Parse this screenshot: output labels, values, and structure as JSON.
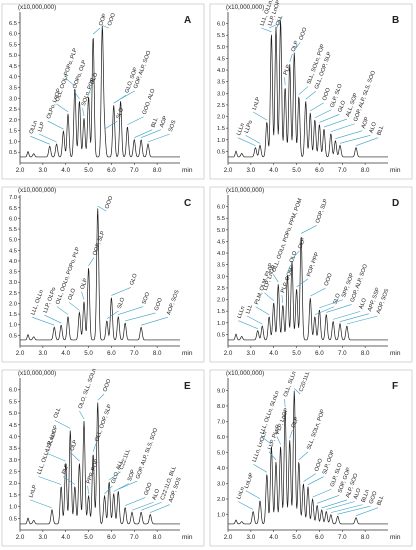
{
  "chart_data": [
    {
      "panel": "A",
      "type": "line",
      "scale_label": "(x10,000,000)",
      "xlabel": "min",
      "xlim": [
        2.0,
        9.0
      ],
      "xticks": [
        "2.0",
        "3.0",
        "4.0",
        "5.0",
        "6.0",
        "7.0",
        "8.0"
      ],
      "ylim": [
        0,
        7
      ],
      "yticks": [
        "0.5",
        "1.0",
        "1.5",
        "2.0",
        "2.5",
        "3.0",
        "3.5",
        "4.0",
        "4.5",
        "5.0",
        "5.5",
        "6.0",
        "6.5"
      ],
      "peaks": [
        {
          "label": "OLLn",
          "rt": 3.3,
          "height": 0.5
        },
        {
          "label": "LLP",
          "rt": 3.6,
          "height": 0.6
        },
        {
          "label": "OLPo, LnOP",
          "rt": 3.9,
          "height": 1.2
        },
        {
          "label": "OLL, OOLn",
          "rt": 4.1,
          "height": 2.0
        },
        {
          "label": "POPo, PLP",
          "rt": 4.4,
          "height": 3.2
        },
        {
          "label": "OOPo, OLP",
          "rt": 4.6,
          "height": 2.6
        },
        {
          "label": "SOLn, POP",
          "rt": 4.8,
          "height": 1.8
        },
        {
          "label": "OLO",
          "rt": 5.0,
          "height": 2.8
        },
        {
          "label": "OOP",
          "rt": 5.2,
          "height": 5.6
        },
        {
          "label": "OOO",
          "rt": 5.6,
          "height": 6.0
        },
        {
          "label": "SLO",
          "rt": 5.7,
          "height": 1.2
        },
        {
          "label": "GLO, SOP",
          "rt": 6.1,
          "height": 2.4
        },
        {
          "label": "GOP, ALP, SOO",
          "rt": 6.4,
          "height": 2.6
        },
        {
          "label": "GOO, ALO",
          "rt": 6.7,
          "height": 1.4
        },
        {
          "label": "BLL",
          "rt": 7.0,
          "height": 0.8
        },
        {
          "label": "AOP",
          "rt": 7.3,
          "height": 0.8
        },
        {
          "label": "SOS",
          "rt": 7.6,
          "height": 0.6
        }
      ]
    },
    {
      "panel": "B",
      "type": "line",
      "scale_label": "(x10,000,000)",
      "xlabel": "min",
      "xlim": [
        2.0,
        9.0
      ],
      "xticks": [
        "2.0",
        "3.0",
        "4.0",
        "5.0",
        "6.0",
        "7.0",
        "8.0"
      ],
      "ylim": [
        0,
        6.5
      ],
      "yticks": [
        "0.5",
        "1.0",
        "1.5",
        "2.0",
        "2.5",
        "3.0",
        "3.5",
        "4.0",
        "4.5",
        "5.0",
        "5.5",
        "6.0"
      ],
      "peaks": [
        {
          "label": "LLLn",
          "rt": 3.2,
          "height": 0.4
        },
        {
          "label": "LLPo",
          "rt": 3.4,
          "height": 0.5
        },
        {
          "label": "LnLP",
          "rt": 3.7,
          "height": 1.5
        },
        {
          "label": "LLL, OLLn, PLnP",
          "rt": 3.9,
          "height": 5.3
        },
        {
          "label": "LLP, LnOP",
          "rt": 4.1,
          "height": 5.6
        },
        {
          "label": "OLL",
          "rt": 4.3,
          "height": 5.9
        },
        {
          "label": "PLP",
          "rt": 4.5,
          "height": 3.0
        },
        {
          "label": "OLP",
          "rt": 4.7,
          "height": 4.0
        },
        {
          "label": "OOO",
          "rt": 4.9,
          "height": 4.5
        },
        {
          "label": "SLL, SOLn, POP",
          "rt": 5.1,
          "height": 2.6
        },
        {
          "label": "GLL, OOP, SLP",
          "rt": 5.4,
          "height": 2.4
        },
        {
          "label": "OOO",
          "rt": 5.6,
          "height": 1.9
        },
        {
          "label": "GLP, SLO",
          "rt": 5.8,
          "height": 1.6
        },
        {
          "label": "GLO",
          "rt": 6.0,
          "height": 1.4
        },
        {
          "label": "ALL, SOP",
          "rt": 6.2,
          "height": 1.2
        },
        {
          "label": "GOP, ALP, SLS, SOO",
          "rt": 6.5,
          "height": 1.0
        },
        {
          "label": "AOP",
          "rt": 6.7,
          "height": 0.7
        },
        {
          "label": "ALO",
          "rt": 6.9,
          "height": 0.5
        },
        {
          "label": "BLL",
          "rt": 7.6,
          "height": 0.4
        }
      ]
    },
    {
      "panel": "C",
      "type": "line",
      "scale_label": "(x10,000,000)",
      "xlabel": "min",
      "xlim": [
        2.0,
        9.0
      ],
      "xticks": [
        "2.0",
        "3.0",
        "4.0",
        "5.0",
        "6.0",
        "7.0",
        "8.0"
      ],
      "ylim": [
        0,
        7.1
      ],
      "yticks": [
        "0.5",
        "1.0",
        "1.5",
        "2.0",
        "2.5",
        "3.0",
        "3.5",
        "4.0",
        "4.5",
        "5.0",
        "5.5",
        "6.0",
        "6.5",
        "7.0"
      ],
      "peaks": [
        {
          "label": "LLL, OLLn",
          "rt": 3.5,
          "height": 0.6
        },
        {
          "label": "LLP, OLPo",
          "rt": 3.8,
          "height": 0.7
        },
        {
          "label": "OLL, OOLn, POPo, PLP",
          "rt": 4.1,
          "height": 1.1
        },
        {
          "label": "OLO",
          "rt": 4.6,
          "height": 1.3
        },
        {
          "label": "OLP",
          "rt": 4.8,
          "height": 1.8
        },
        {
          "label": "OOP, SLP",
          "rt": 5.0,
          "height": 3.4
        },
        {
          "label": "OOO",
          "rt": 5.4,
          "height": 6.2
        },
        {
          "label": "SLO",
          "rt": 5.8,
          "height": 0.9
        },
        {
          "label": "GLO",
          "rt": 6.0,
          "height": 2.0
        },
        {
          "label": "SOO",
          "rt": 6.3,
          "height": 1.1
        },
        {
          "label": "GOO",
          "rt": 6.6,
          "height": 0.8
        },
        {
          "label": "AOP, SOS",
          "rt": 7.3,
          "height": 0.6
        }
      ]
    },
    {
      "panel": "D",
      "type": "line",
      "scale_label": "(x10,000,000)",
      "xlabel": "min",
      "xlim": [
        2.0,
        9.0
      ],
      "xticks": [
        "2.0",
        "3.0",
        "4.0",
        "5.0",
        "6.0",
        "7.0",
        "8.0"
      ],
      "ylim": [
        0,
        6.5
      ],
      "yticks": [
        "0.5",
        "1.0",
        "1.5",
        "2.0",
        "2.5",
        "3.0",
        "3.5",
        "4.0",
        "4.5",
        "5.0",
        "5.5",
        "6.0"
      ],
      "peaks": [
        {
          "label": "LLLn",
          "rt": 3.3,
          "height": 0.4
        },
        {
          "label": "LLL",
          "rt": 3.5,
          "height": 0.6
        },
        {
          "label": "PLM, OLM, PLnP",
          "rt": 3.8,
          "height": 1.0
        },
        {
          "label": "LLP, LnOP",
          "rt": 4.0,
          "height": 1.6
        },
        {
          "label": "OLL, OOLn, POPo, PPM, POM",
          "rt": 4.2,
          "height": 2.4
        },
        {
          "label": "PLP, OOM",
          "rt": 4.4,
          "height": 1.5
        },
        {
          "label": "OLO",
          "rt": 4.6,
          "height": 2.8
        },
        {
          "label": "OLP",
          "rt": 4.8,
          "height": 3.4
        },
        {
          "label": "POP, PPP",
          "rt": 5.0,
          "height": 2.2
        },
        {
          "label": "OOP, SLP",
          "rt": 5.2,
          "height": 4.5
        },
        {
          "label": "OOO",
          "rt": 5.6,
          "height": 1.8
        },
        {
          "label": "SLO",
          "rt": 5.8,
          "height": 1.0
        },
        {
          "label": "SPP, SOP",
          "rt": 6.0,
          "height": 1.3
        },
        {
          "label": "GOP, ALP, SOO",
          "rt": 6.3,
          "height": 1.1
        },
        {
          "label": "ALO",
          "rt": 6.6,
          "height": 0.8
        },
        {
          "label": "APP, SSP",
          "rt": 6.9,
          "height": 0.7
        },
        {
          "label": "AOP, SOS",
          "rt": 7.2,
          "height": 0.6
        }
      ]
    },
    {
      "panel": "E",
      "type": "line",
      "scale_label": "(x10,000,000)",
      "xlabel": "min",
      "xlim": [
        2.0,
        9.0
      ],
      "xticks": [
        "2.0",
        "3.0",
        "4.0",
        "5.0",
        "6.0",
        "7.0",
        "8.0"
      ],
      "ylim": [
        0,
        6.5
      ],
      "yticks": [
        "0.5",
        "1.0",
        "1.5",
        "2.0",
        "2.5",
        "3.0",
        "3.5",
        "4.0",
        "4.5",
        "5.0",
        "5.5",
        "6.0"
      ],
      "peaks": [
        {
          "label": "LnLP",
          "rt": 3.4,
          "height": 0.6
        },
        {
          "label": "LLL, OLLn, SLnLn",
          "rt": 3.8,
          "height": 1.6
        },
        {
          "label": "LLP, LnOP",
          "rt": 4.0,
          "height": 2.6
        },
        {
          "label": "OLL",
          "rt": 4.2,
          "height": 4.0
        },
        {
          "label": "PLP",
          "rt": 4.4,
          "height": 1.6
        },
        {
          "label": "OLP",
          "rt": 4.6,
          "height": 2.6
        },
        {
          "label": "OLO, SLL, SOLn",
          "rt": 4.8,
          "height": 4.4
        },
        {
          "label": "PPP, POP",
          "rt": 5.0,
          "height": 1.2
        },
        {
          "label": "GLL, OOP, SLP",
          "rt": 5.2,
          "height": 3.0
        },
        {
          "label": "OOO",
          "rt": 5.4,
          "height": 5.2
        },
        {
          "label": "GLO, ALL",
          "rt": 5.7,
          "height": 1.2
        },
        {
          "label": "C22:1LL",
          "rt": 5.9,
          "height": 1.8
        },
        {
          "label": "SOP",
          "rt": 6.1,
          "height": 1.3
        },
        {
          "label": "GOP, ALP, SLS, SOO",
          "rt": 6.3,
          "height": 1.4
        },
        {
          "label": "GOO",
          "rt": 6.6,
          "height": 0.7
        },
        {
          "label": "ALO",
          "rt": 6.9,
          "height": 0.5
        },
        {
          "label": "C22:1LO, BLL",
          "rt": 7.3,
          "height": 0.5
        },
        {
          "label": "AOP, SOS",
          "rt": 7.7,
          "height": 0.4
        }
      ]
    },
    {
      "panel": "F",
      "type": "line",
      "scale_label": "(x10,000,000)",
      "xlabel": "min",
      "xlim": [
        2.0,
        9.0
      ],
      "xticks": [
        "2.0",
        "3.0",
        "4.0",
        "5.0",
        "6.0",
        "7.0",
        "8.0"
      ],
      "ylim": [
        0,
        9.8
      ],
      "yticks": [
        "1.0",
        "2.0",
        "3.0",
        "4.0",
        "5.0",
        "6.0",
        "7.0",
        "8.0",
        "9.0"
      ],
      "peaks": [
        {
          "label": "LnLn",
          "rt": 3.1,
          "height": 0.8
        },
        {
          "label": "LnLnP",
          "rt": 3.4,
          "height": 1.5
        },
        {
          "label": "LLLn, LnOLn",
          "rt": 3.7,
          "height": 3.2
        },
        {
          "label": "LLL, OLLn, SLnLn",
          "rt": 3.9,
          "height": 5.0
        },
        {
          "label": "LLP, PLnP",
          "rt": 4.1,
          "height": 4.0
        },
        {
          "label": "PLP, LnOP",
          "rt": 4.3,
          "height": 5.0
        },
        {
          "label": "OLL, SLLn",
          "rt": 4.5,
          "height": 7.4
        },
        {
          "label": "OLP",
          "rt": 4.7,
          "height": 5.4
        },
        {
          "label": "C20:1LL",
          "rt": 4.9,
          "height": 8.6
        },
        {
          "label": "SLL, SOLn, POP",
          "rt": 5.1,
          "height": 4.0
        },
        {
          "label": "OOO",
          "rt": 5.3,
          "height": 2.6
        },
        {
          "label": "SLP, OOP",
          "rt": 5.5,
          "height": 2.4
        },
        {
          "label": "GLP, SLO",
          "rt": 5.7,
          "height": 1.6
        },
        {
          "label": "SOP, GOP",
          "rt": 5.9,
          "height": 1.2
        },
        {
          "label": "ALP, SOO",
          "rt": 6.1,
          "height": 0.9
        },
        {
          "label": "ALO",
          "rt": 6.3,
          "height": 0.8
        },
        {
          "label": "BLLn",
          "rt": 6.5,
          "height": 0.6
        },
        {
          "label": "GOO",
          "rt": 6.8,
          "height": 0.5
        },
        {
          "label": "BLL",
          "rt": 7.6,
          "height": 0.4
        }
      ]
    }
  ]
}
